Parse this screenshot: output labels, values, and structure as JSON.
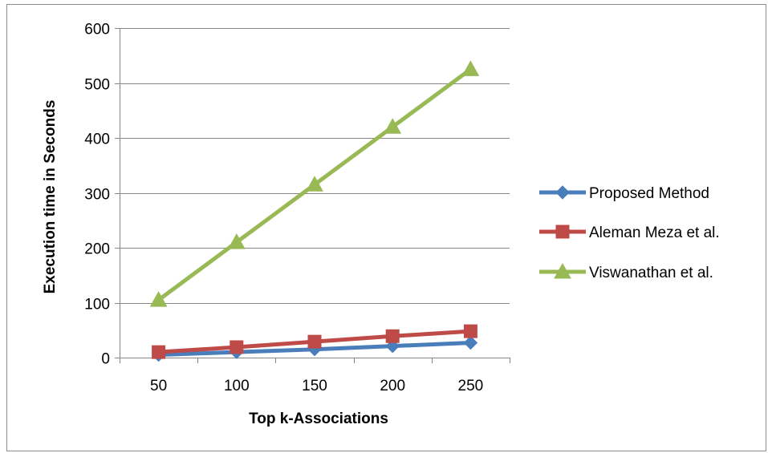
{
  "chart_data": {
    "type": "line",
    "title": "",
    "xlabel": "Top k-Associations",
    "ylabel": "Execution time in Seconds",
    "categories": [
      "50",
      "100",
      "150",
      "200",
      "250"
    ],
    "ylim": [
      0,
      600
    ],
    "yticks": [
      0,
      100,
      200,
      300,
      400,
      500,
      600
    ],
    "grid": true,
    "legend_position": "right",
    "series": [
      {
        "name": "Proposed Method",
        "values": [
          5,
          10,
          15,
          21,
          27
        ],
        "color": "#4a7ebb",
        "marker": "diamond"
      },
      {
        "name": "Aleman Meza et al.",
        "values": [
          10,
          19,
          29,
          39,
          48
        ],
        "color": "#be4b48",
        "marker": "square"
      },
      {
        "name": "Viswanathan et al.",
        "values": [
          105,
          210,
          315,
          420,
          525
        ],
        "color": "#98b954",
        "marker": "triangle"
      }
    ]
  }
}
